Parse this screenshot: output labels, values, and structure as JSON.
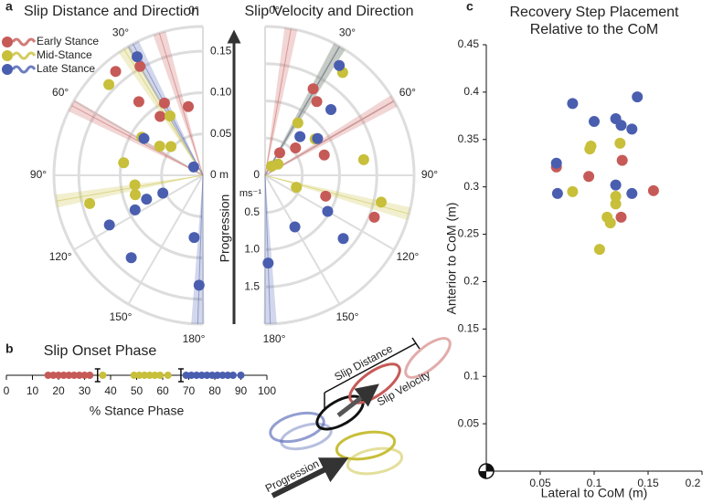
{
  "panel_labels": [
    "a",
    "b",
    "c"
  ],
  "progression_label": "Progression",
  "diagram": {
    "labels": [
      "Slip Distance",
      "Slip Velocity",
      "Progression"
    ]
  },
  "chart_data": [
    {
      "type": "polar",
      "title": "Slip Distance and Direction",
      "side": "left",
      "rlim": [
        0,
        0.18
      ],
      "rticks": [
        {
          "value": 0,
          "label": "0 m"
        },
        0.05,
        {
          "value": 0.1,
          "label": "0.10"
        },
        0.15
      ],
      "thetaticks": [
        {
          "value": 0,
          "label": "0°"
        },
        {
          "value": 30,
          "label": "30°"
        },
        {
          "value": 60,
          "label": "60°"
        },
        {
          "value": 90,
          "label": "90°"
        },
        {
          "value": 120,
          "label": "120°"
        },
        {
          "value": 150,
          "label": "150°"
        },
        {
          "value": 180,
          "label": "180°"
        }
      ],
      "legend": "upper left",
      "series": [
        {
          "name": "Early Stance",
          "color": "#c65a57",
          "theta": [
            40,
            30,
            12,
            28,
            41,
            36
          ],
          "values": [
            0.164,
            0.152,
            0.085,
            0.099,
            0.118,
            0.088
          ],
          "mean_angles": [
            17,
            62
          ]
        },
        {
          "name": "Mid-Stance",
          "color": "#c8bf3a",
          "theta": [
            46,
            58,
            29,
            56,
            48,
            81,
            98,
            106,
            104
          ],
          "values": [
            0.158,
            0.087,
            0.082,
            0.063,
            0.052,
            0.097,
            0.083,
            0.085,
            0.141
          ],
          "mean_angles": [
            32,
            100
          ]
        },
        {
          "name": "Late Stance",
          "color": "#4a5eb0",
          "theta": [
            29,
            58,
            48,
            113,
            114,
            117,
            118,
            139,
            172,
            178
          ],
          "values": [
            0.164,
            0.084,
            0.015,
            0.074,
            0.053,
            0.092,
            0.128,
            0.132,
            0.076,
            0.133
          ],
          "mean_angles": [
            28,
            178
          ]
        }
      ]
    },
    {
      "type": "polar",
      "title": "Slip Velocity and Direction",
      "side": "right",
      "rlim": [
        0,
        2
      ],
      "rticks": [
        0,
        0.5,
        {
          "value": 1,
          "label": "1.0"
        },
        1.5
      ],
      "r_unit": "ms⁻¹",
      "thetaticks": [
        {
          "value": 0,
          "label": "0°"
        },
        {
          "value": 30,
          "label": "30°"
        },
        {
          "value": 60,
          "label": "60°"
        },
        {
          "value": 90,
          "label": "90°"
        },
        {
          "value": 120,
          "label": "120°"
        },
        {
          "value": 150,
          "label": "150°"
        },
        {
          "value": 180,
          "label": "180°"
        }
      ],
      "series": [
        {
          "color": "#c65a57",
          "theta": [
            29,
            35,
            33,
            48,
            71,
            111,
            109
          ],
          "values": [
            1.33,
            1.21,
            0.36,
            0.55,
            0.84,
            1.57,
            0.86
          ],
          "mean_angles": [
            10,
            60
          ]
        },
        {
          "color": "#c8bf3a",
          "theta": [
            37,
            32,
            54,
            49,
            81,
            111,
            103,
            35
          ],
          "values": [
            1.73,
            0.83,
            0.83,
            0.23,
            1.34,
            0.45,
            1.6,
            0.15
          ],
          "mean_angles": [
            30,
            105
          ]
        },
        {
          "color": "#4a5eb0",
          "theta": [
            34,
            45,
            42,
            55,
            120,
            129,
            150,
            178
          ],
          "values": [
            1.78,
            1.25,
            0.7,
            0.86,
            0.97,
            1.35,
            0.8,
            1.18
          ],
          "mean_angles": [
            30,
            178
          ]
        }
      ]
    },
    {
      "type": "strip",
      "title": "Slip Onset Phase",
      "xlabel": "% Stance Phase",
      "xlim": [
        0,
        100
      ],
      "xticks": [
        0,
        10,
        20,
        30,
        40,
        50,
        60,
        70,
        80,
        90,
        100
      ],
      "boundaries": [
        35,
        67
      ],
      "series": [
        {
          "color": "#c65a57",
          "values": [
            16,
            18,
            20,
            22,
            24,
            26,
            28,
            30,
            32
          ]
        },
        {
          "color": "#c8bf3a",
          "values": [
            37,
            49,
            51,
            53,
            55,
            57,
            59,
            62
          ]
        },
        {
          "color": "#4a5eb0",
          "values": [
            69,
            71,
            73,
            75,
            77,
            79,
            81,
            83,
            85,
            87,
            90
          ]
        }
      ]
    },
    {
      "type": "scatter",
      "title": [
        "Recovery Step Placement",
        "Relative to the CoM"
      ],
      "xlabel": "Lateral to CoM (m)",
      "ylabel": "Anterior to CoM (m)",
      "xlim": [
        0,
        0.2
      ],
      "ylim": [
        0,
        0.45
      ],
      "xticks": [
        0.05,
        0.1,
        0.15,
        0.2
      ],
      "yticks": [
        0.05,
        0.1,
        0.15,
        0.2,
        0.25,
        0.3,
        0.35,
        0.4,
        0.45
      ],
      "series": [
        {
          "color": "#c65a57",
          "x": [
            0.065,
            0.095,
            0.126,
            0.155,
            0.125
          ],
          "values": [
            0.321,
            0.311,
            0.328,
            0.296,
            0.268
          ]
        },
        {
          "color": "#c8bf3a",
          "x": [
            0.08,
            0.097,
            0.096,
            0.124,
            0.12,
            0.12,
            0.112,
            0.115,
            0.105
          ],
          "values": [
            0.295,
            0.343,
            0.34,
            0.346,
            0.29,
            0.282,
            0.268,
            0.262,
            0.234
          ]
        },
        {
          "color": "#4a5eb0",
          "x": [
            0.08,
            0.065,
            0.066,
            0.1,
            0.12,
            0.125,
            0.14,
            0.135,
            0.12,
            0.135
          ],
          "values": [
            0.388,
            0.325,
            0.293,
            0.369,
            0.372,
            0.365,
            0.395,
            0.361,
            0.302,
            0.293
          ]
        }
      ]
    }
  ]
}
